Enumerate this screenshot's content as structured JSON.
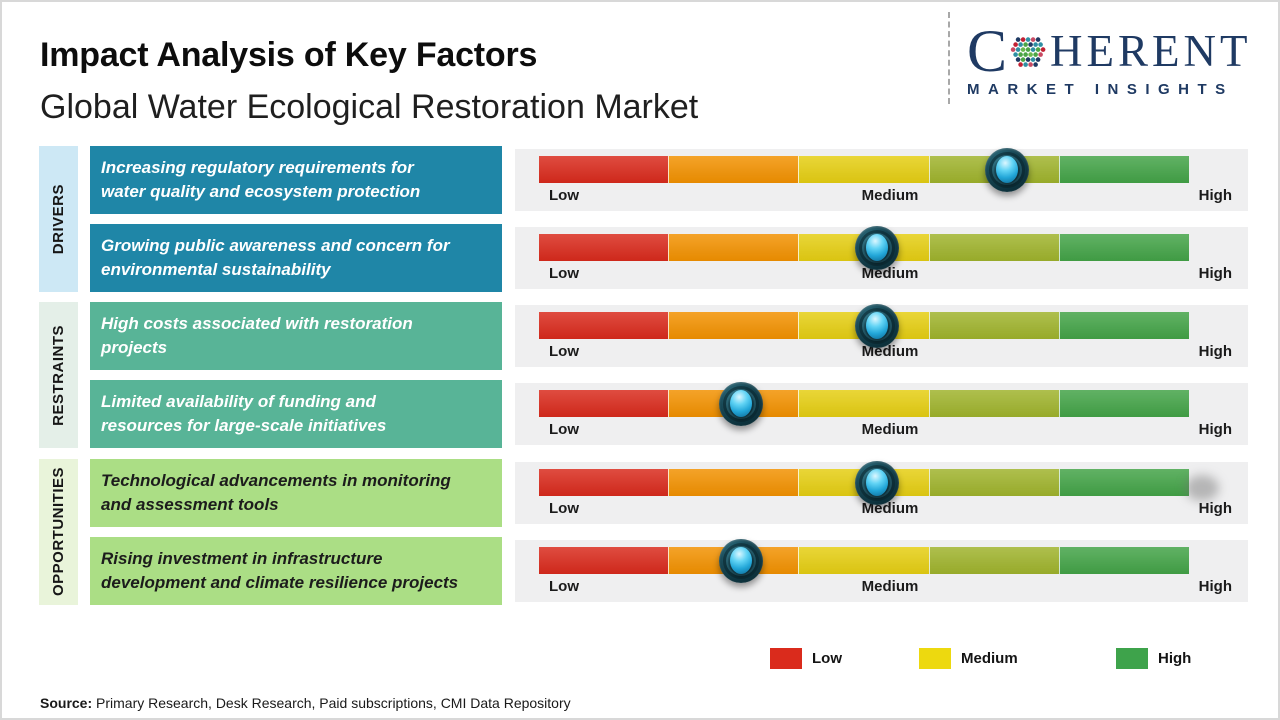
{
  "header": {
    "title": "Impact Analysis of Key Factors",
    "subtitle": "Global Water Ecological Restoration Market",
    "logo": {
      "word_start": "C",
      "word_end": "HERENT",
      "tagline": "MARKET INSIGHTS",
      "icon": "dotted-globe-icon",
      "brand_color": "#1f3a63",
      "dot_colors": [
        "#c22033",
        "#1f3a63",
        "#2e8fa3",
        "#4ca546",
        "#6bb84e",
        "#c84a63"
      ]
    }
  },
  "scale": {
    "low": "Low",
    "medium": "Medium",
    "high": "High"
  },
  "bar": {
    "segment_colors": [
      "#d92a1c",
      "#f29100",
      "#e5ce12",
      "#9fb32c",
      "#43a347"
    ],
    "panel_color": "#efeff0"
  },
  "sections": [
    {
      "label": "DRIVERS",
      "sidebar_color": "#cde8f5",
      "card_color": "#1f86a7",
      "card_text_color": "#ffffff",
      "rows": [
        {
          "text": "Increasing regulatory requirements for\nwater quality and ecosystem protection",
          "impact_percent": 72
        },
        {
          "text": "Growing public awareness and concern for\nenvironmental sustainability",
          "impact_percent": 52
        }
      ]
    },
    {
      "label": "RESTRAINTS",
      "sidebar_color": "#e4efe8",
      "card_color": "#58b497",
      "card_text_color": "#ffffff",
      "rows": [
        {
          "text": "High costs associated with restoration\nprojects",
          "impact_percent": 52
        },
        {
          "text": "Limited availability of funding and\nresources for large-scale initiatives",
          "impact_percent": 31
        }
      ]
    },
    {
      "label": "OPPORTUNITIES",
      "sidebar_color": "#e9f4da",
      "card_color": "#abde85",
      "card_text_color": "#1c1c1c",
      "rows": [
        {
          "text": "Technological advancements in monitoring\nand assessment tools",
          "impact_percent": 52,
          "shadow_smudge": true
        },
        {
          "text": "Rising investment in infrastructure\ndevelopment and climate resilience projects",
          "impact_percent": 31
        }
      ]
    }
  ],
  "legend": [
    {
      "label": "Low",
      "color": "#da2b1c"
    },
    {
      "label": "Medium",
      "color": "#edd90f"
    },
    {
      "label": "High",
      "color": "#3ea34b"
    }
  ],
  "source": {
    "label": "Source:",
    "text": " Primary Research, Desk Research, Paid subscriptions, CMI Data Repository"
  },
  "chart_data": {
    "type": "bar",
    "title": "Impact Analysis of Key Factors",
    "subtitle": "Global Water Ecological Restoration Market",
    "scale_labels": [
      "Low",
      "Medium",
      "High"
    ],
    "scale_range": [
      0,
      100
    ],
    "legend": [
      "Low",
      "Medium",
      "High"
    ],
    "series": [
      {
        "category": "Drivers",
        "factor": "Increasing regulatory requirements for water quality and ecosystem protection",
        "impact_percent": 72
      },
      {
        "category": "Drivers",
        "factor": "Growing public awareness and concern for environmental sustainability",
        "impact_percent": 52
      },
      {
        "category": "Restraints",
        "factor": "High costs associated with restoration projects",
        "impact_percent": 52
      },
      {
        "category": "Restraints",
        "factor": "Limited availability of funding and resources for large-scale initiatives",
        "impact_percent": 31
      },
      {
        "category": "Opportunities",
        "factor": "Technological advancements in monitoring and assessment tools",
        "impact_percent": 52
      },
      {
        "category": "Opportunities",
        "factor": "Rising investment in infrastructure development and climate resilience projects",
        "impact_percent": 31
      }
    ]
  }
}
